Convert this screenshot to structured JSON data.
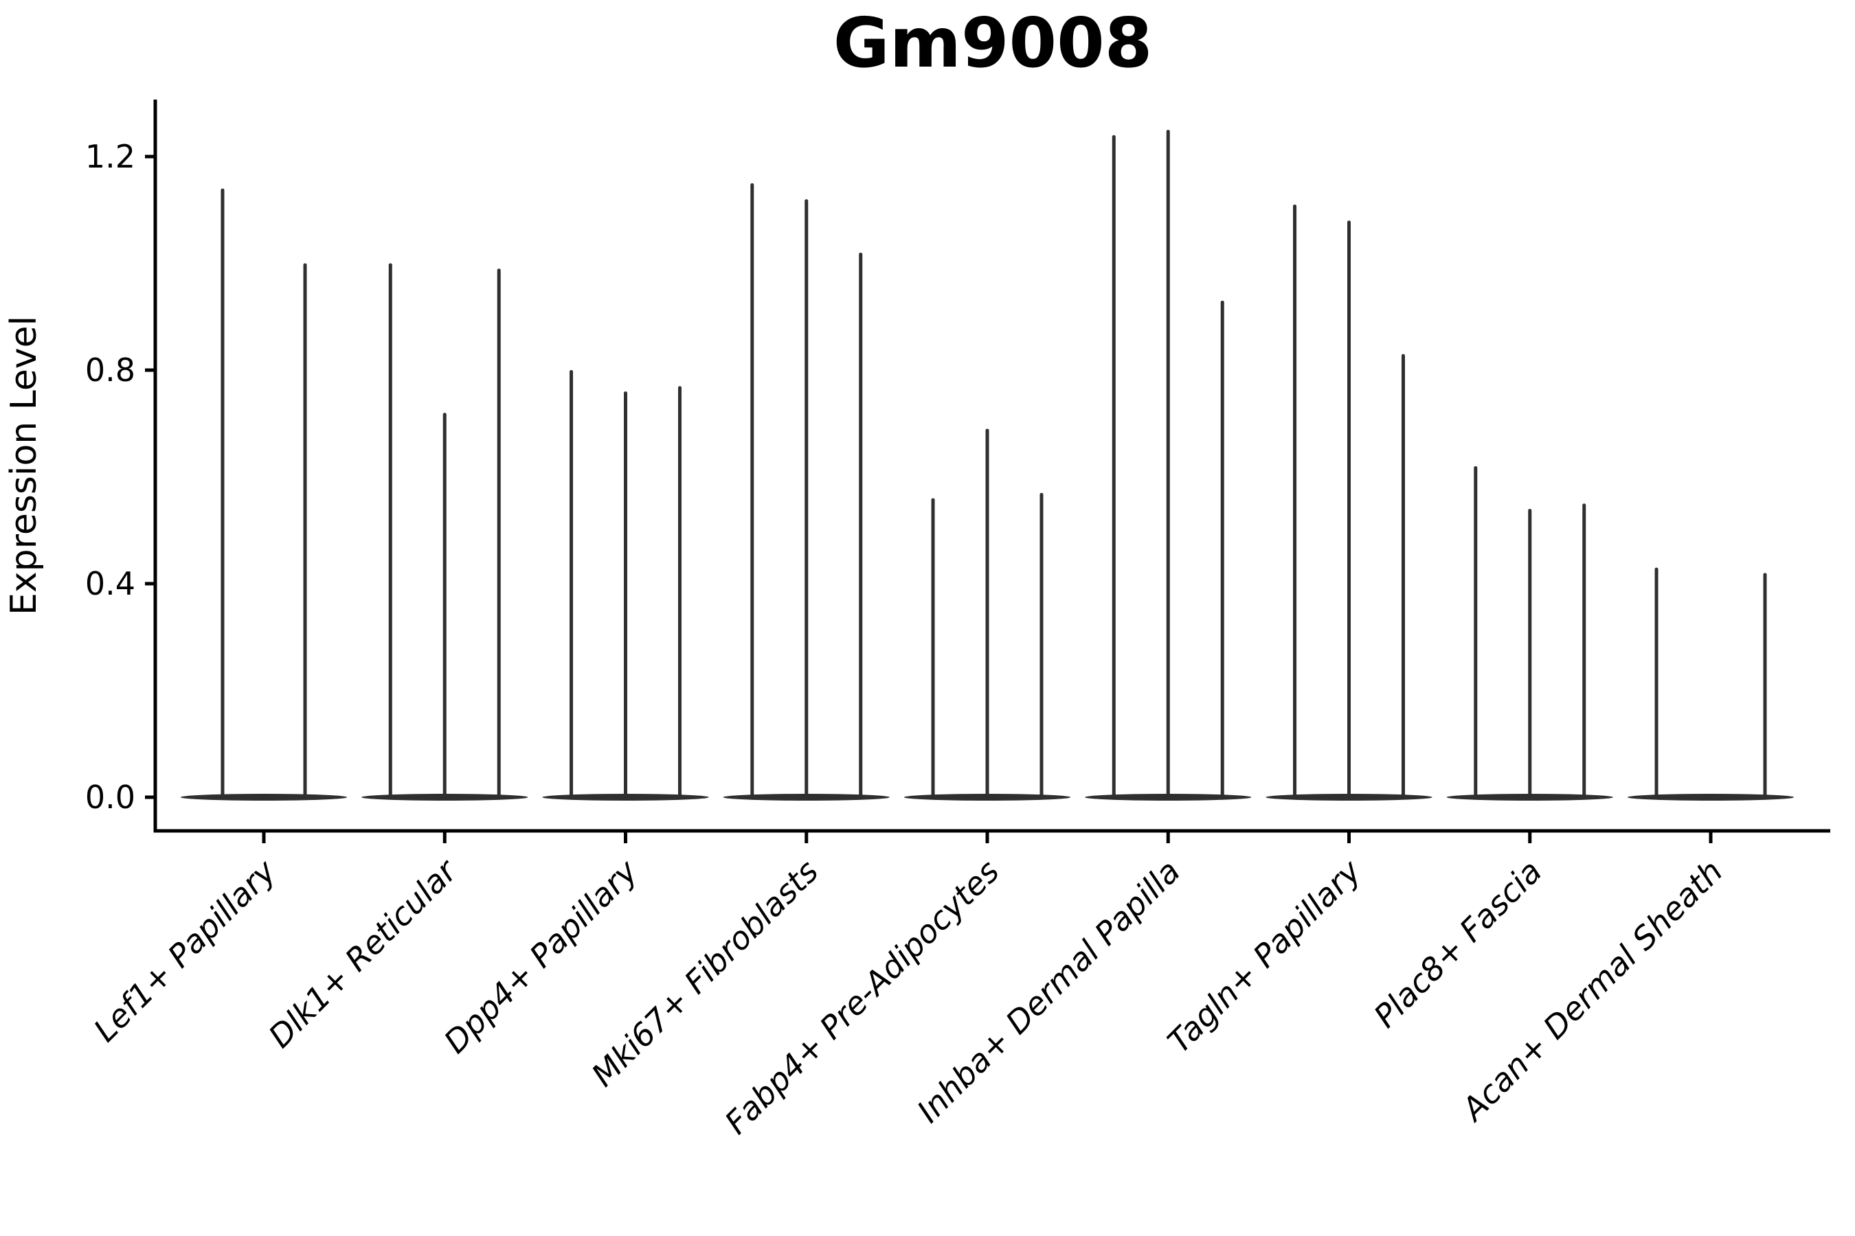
{
  "title": "Gm9008",
  "colors": {
    "violin": "#2f2f2f",
    "axis": "#000000",
    "background": "#ffffff"
  },
  "chart_data": {
    "type": "violin",
    "title": "Gm9008",
    "xlabel": "",
    "ylabel": "Expression Level",
    "ylim": [
      -0.063,
      1.307
    ],
    "yticks": [
      {
        "value": 0.0,
        "label": "0.0"
      },
      {
        "value": 0.4,
        "label": "0.4"
      },
      {
        "value": 0.8,
        "label": "0.8"
      },
      {
        "value": 1.2,
        "label": "1.2"
      }
    ],
    "grid": false,
    "legend": "none",
    "description": "Violin plot of Gm9008 expression; each category shows flat violins massed at 0 with thin density spikes reaching each violin's maximum expression value.",
    "base_halfwidth_frac": 0.46,
    "categories": [
      "Lef1+ Papillary",
      "Dlk1+ Reticular",
      "Dpp4+ Papillary",
      "Mki67+ Fibroblasts",
      "Fabp4+ Pre-Adipocytes",
      "Inhba+ Dermal Papilla",
      "Tagln+ Papillary",
      "Plac8+ Fascia",
      "Acan+ Dermal Sheath"
    ],
    "series": [
      {
        "category": "Lef1+ Papillary",
        "violins": [
          {
            "offset": -0.228,
            "max": 1.14
          },
          {
            "offset": 0.228,
            "max": 1.0
          }
        ]
      },
      {
        "category": "Dlk1+ Reticular",
        "violins": [
          {
            "offset": -0.3,
            "max": 1.0
          },
          {
            "offset": 0.0,
            "max": 0.72
          },
          {
            "offset": 0.3,
            "max": 0.99
          }
        ]
      },
      {
        "category": "Dpp4+ Papillary",
        "violins": [
          {
            "offset": -0.3,
            "max": 0.8
          },
          {
            "offset": 0.0,
            "max": 0.76
          },
          {
            "offset": 0.3,
            "max": 0.77
          }
        ]
      },
      {
        "category": "Mki67+ Fibroblasts",
        "violins": [
          {
            "offset": -0.3,
            "max": 1.15
          },
          {
            "offset": 0.0,
            "max": 1.12
          },
          {
            "offset": 0.3,
            "max": 1.02
          }
        ]
      },
      {
        "category": "Fabp4+ Pre-Adipocytes",
        "violins": [
          {
            "offset": -0.3,
            "max": 0.56
          },
          {
            "offset": 0.0,
            "max": 0.69
          },
          {
            "offset": 0.3,
            "max": 0.57
          }
        ]
      },
      {
        "category": "Inhba+ Dermal Papilla",
        "violins": [
          {
            "offset": -0.3,
            "max": 1.24
          },
          {
            "offset": 0.0,
            "max": 1.25
          },
          {
            "offset": 0.3,
            "max": 0.93
          }
        ]
      },
      {
        "category": "Tagln+ Papillary",
        "violins": [
          {
            "offset": -0.3,
            "max": 1.11
          },
          {
            "offset": 0.0,
            "max": 1.08
          },
          {
            "offset": 0.3,
            "max": 0.83
          }
        ]
      },
      {
        "category": "Plac8+ Fascia",
        "violins": [
          {
            "offset": -0.3,
            "max": 0.62
          },
          {
            "offset": 0.0,
            "max": 0.54
          },
          {
            "offset": 0.3,
            "max": 0.55
          }
        ]
      },
      {
        "category": "Acan+ Dermal Sheath",
        "violins": [
          {
            "offset": -0.3,
            "max": 0.43
          },
          {
            "offset": 0.3,
            "max": 0.42
          }
        ]
      }
    ]
  }
}
